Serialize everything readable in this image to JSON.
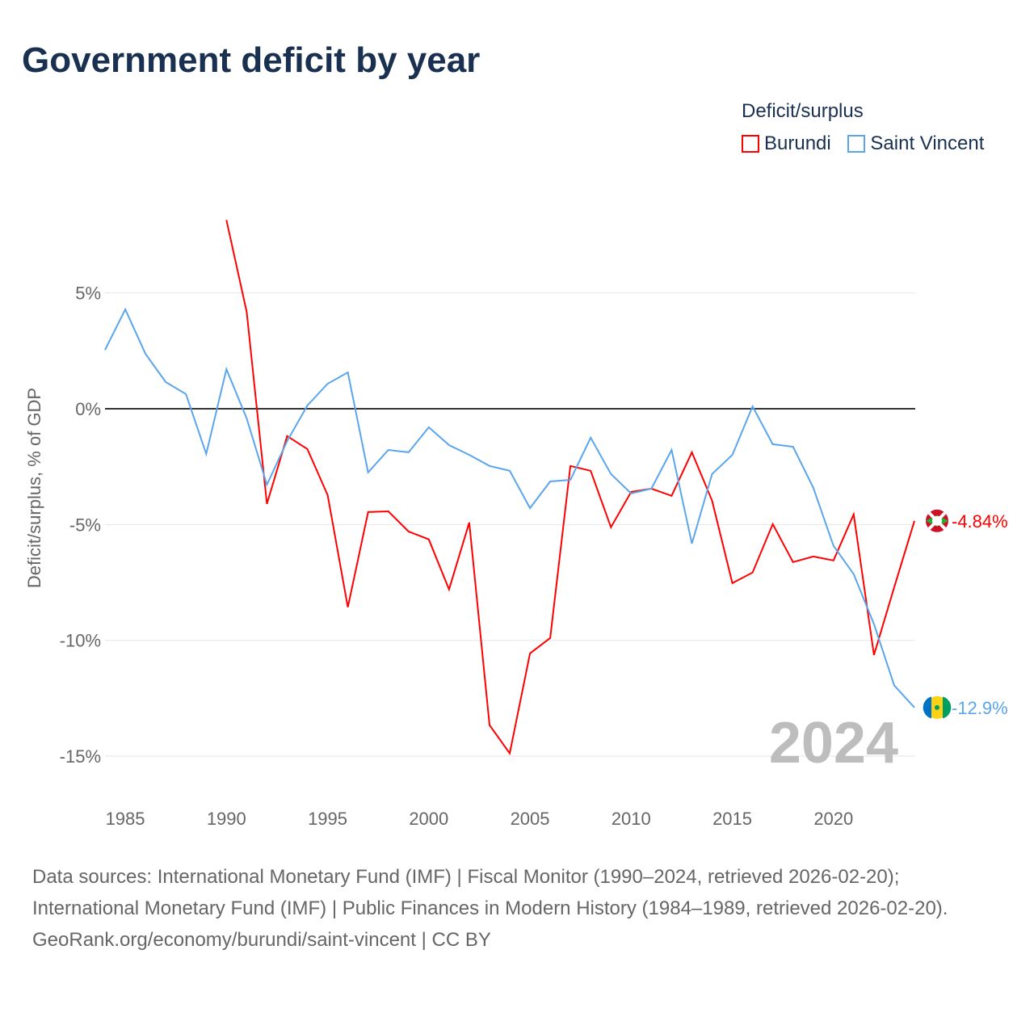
{
  "chart_data": {
    "type": "line",
    "title": "Government deficit by year",
    "ylabel": "Deficit/surplus, % of GDP",
    "xlabel": "",
    "ylim": [
      -16.5,
      8.5
    ],
    "xlim": [
      1984,
      2024
    ],
    "yticks": [
      5,
      0,
      -5,
      -10,
      -15
    ],
    "ytick_labels": [
      "5%",
      "0%",
      "-5%",
      "-10%",
      "-15%"
    ],
    "xticks": [
      1985,
      1990,
      1995,
      2000,
      2005,
      2010,
      2015,
      2020
    ],
    "xtick_labels": [
      "1985",
      "1990",
      "1995",
      "2000",
      "2005",
      "2010",
      "2015",
      "2020"
    ],
    "legend_title": "Deficit/surplus",
    "legend_placement": "top-right",
    "year_label": "2024",
    "series": [
      {
        "name": "Burundi",
        "color": "#ff0000",
        "end_label": "-4.84%",
        "x_start": 1990,
        "values": [
          8.15,
          4.18,
          -4.11,
          -1.18,
          -1.74,
          -3.73,
          -8.57,
          -4.46,
          -4.43,
          -5.3,
          -5.64,
          -7.8,
          -4.91,
          -13.66,
          -14.88,
          -10.56,
          -9.9,
          -2.47,
          -2.68,
          -5.12,
          -3.59,
          -3.45,
          -3.76,
          -1.88,
          -3.97,
          -7.53,
          -7.07,
          -4.98,
          -6.62,
          -6.38,
          -6.55,
          -4.56,
          -10.63,
          -7.7,
          -4.84
        ]
      },
      {
        "name": "Saint Vincent",
        "color": "#5aa5ec",
        "end_label": "-12.9%",
        "x_start": 1984,
        "values": [
          2.54,
          4.29,
          2.37,
          1.15,
          0.63,
          -1.95,
          1.71,
          -0.42,
          -3.28,
          -1.39,
          0.14,
          1.08,
          1.57,
          -2.75,
          -1.78,
          -1.88,
          -0.8,
          -1.57,
          -1.99,
          -2.47,
          -2.68,
          -4.29,
          -3.14,
          -3.07,
          -1.25,
          -2.82,
          -3.66,
          -3.45,
          -1.78,
          -5.82,
          -2.82,
          -1.99,
          0.1,
          -1.53,
          -1.64,
          -3.41,
          -5.92,
          -7.14,
          -9.3,
          -11.95,
          -12.9
        ]
      }
    ]
  },
  "footer": {
    "line1": "Data sources: International Monetary Fund (IMF) | Fiscal Monitor (1990–2024, retrieved 2026-02-20); International Monetary Fund (IMF) | Public Finances in Modern History (1984–1989, retrieved 2026-02-20).",
    "line2": "GeoRank.org/economy/burundi/saint-vincent | CC BY"
  }
}
